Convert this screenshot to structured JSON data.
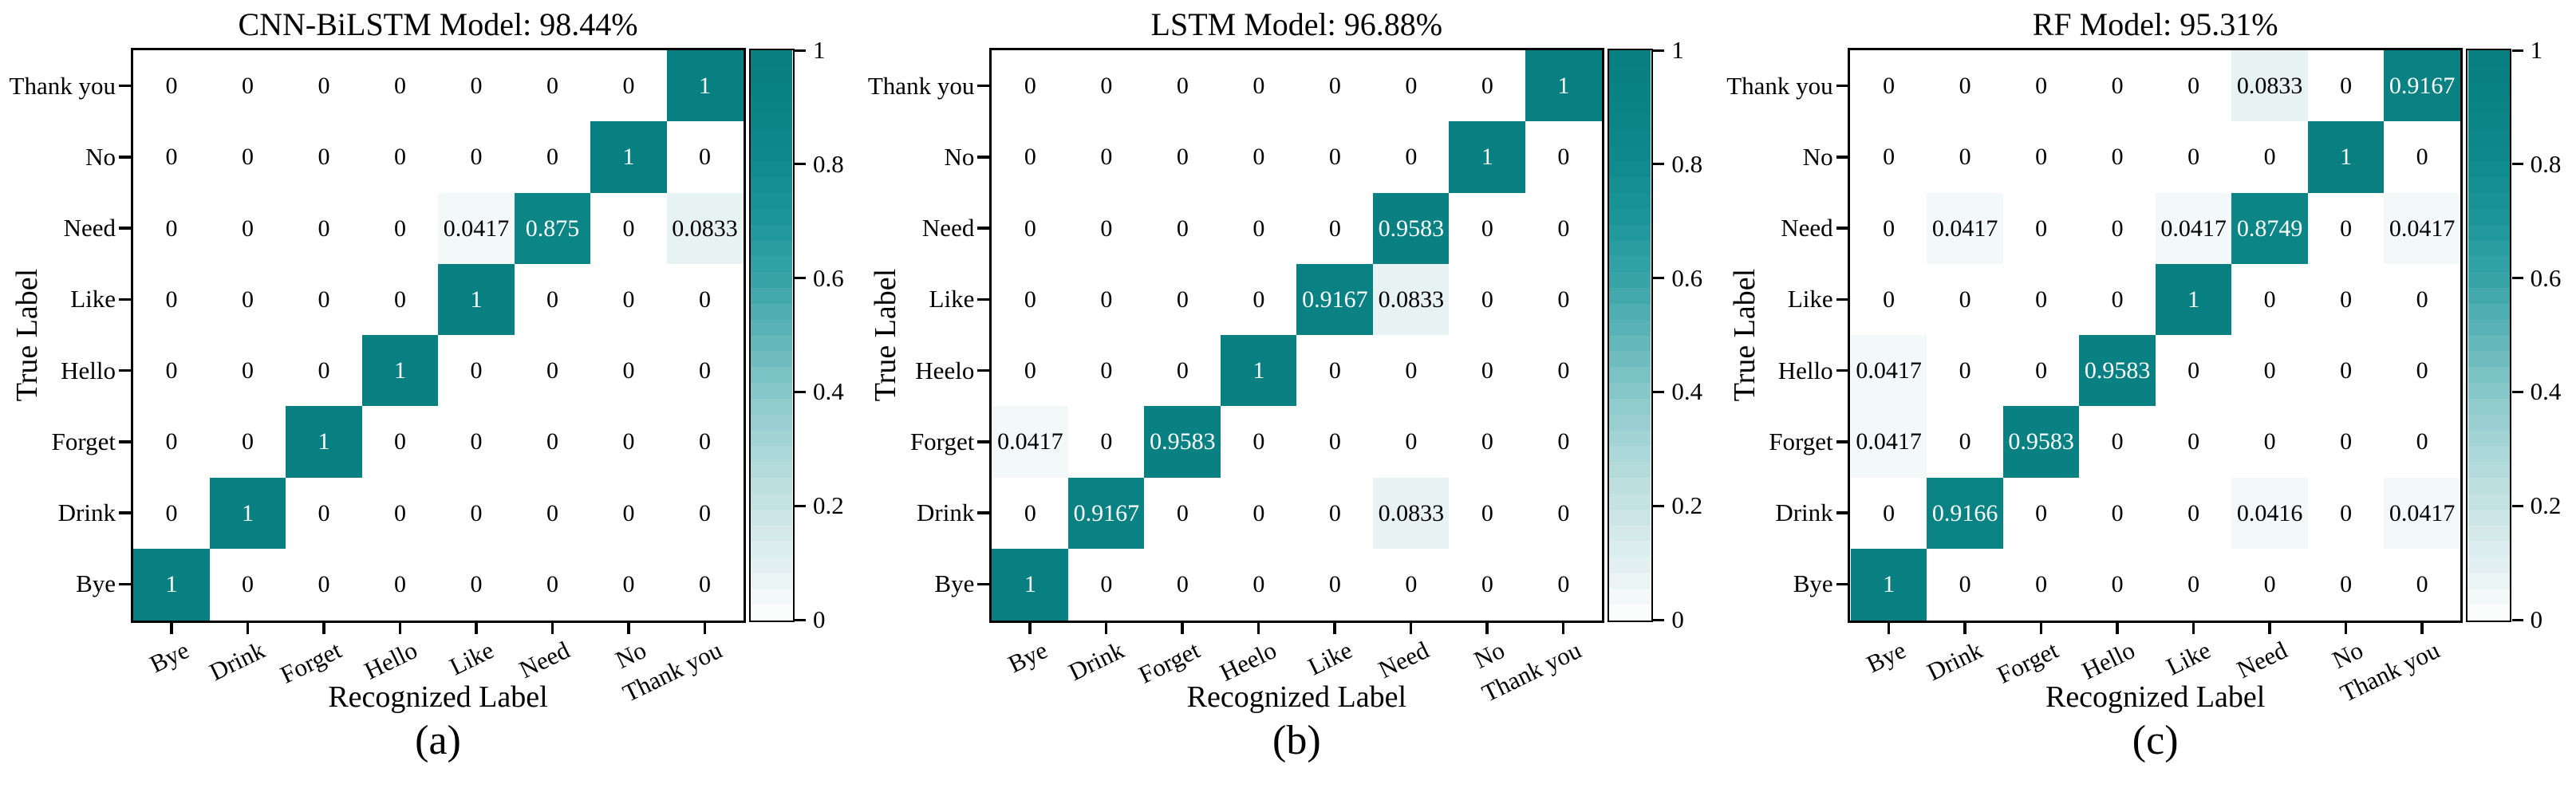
{
  "figure": {
    "x_axis_label": "Recognized Label",
    "y_axis_label": "True Label",
    "accent_color": "#0a8082",
    "background_color": "#ffffff",
    "colorbar_ticks": [
      "1",
      "0.8",
      "0.6",
      "0.4",
      "0.2",
      "0"
    ]
  },
  "chart_data": [
    {
      "type": "heatmap",
      "title": "CNN-BiLSTM Model: 98.44%",
      "caption": "(a)",
      "xlabel": "Recognized Label",
      "ylabel": "True Label",
      "value_range": [
        0,
        1
      ],
      "legend_position": "right-colorbar",
      "x_labels": [
        "Bye",
        "Drink",
        "Forget",
        "Hello",
        "Like",
        "Need",
        "No",
        "Thank you"
      ],
      "rows": [
        {
          "label": "Thank you",
          "cells": [
            "0",
            "0",
            "0",
            "0",
            "0",
            "0",
            "0",
            "1"
          ]
        },
        {
          "label": "No",
          "cells": [
            "0",
            "0",
            "0",
            "0",
            "0",
            "0",
            "1",
            "0"
          ]
        },
        {
          "label": "Need",
          "cells": [
            "0",
            "0",
            "0",
            "0",
            "0.0417",
            "0.875",
            "0",
            "0.0833"
          ]
        },
        {
          "label": "Like",
          "cells": [
            "0",
            "0",
            "0",
            "0",
            "1",
            "0",
            "0",
            "0"
          ]
        },
        {
          "label": "Hello",
          "cells": [
            "0",
            "0",
            "0",
            "1",
            "0",
            "0",
            "0",
            "0"
          ]
        },
        {
          "label": "Forget",
          "cells": [
            "0",
            "0",
            "1",
            "0",
            "0",
            "0",
            "0",
            "0"
          ]
        },
        {
          "label": "Drink",
          "cells": [
            "0",
            "1",
            "0",
            "0",
            "0",
            "0",
            "0",
            "0"
          ]
        },
        {
          "label": "Bye",
          "cells": [
            "1",
            "0",
            "0",
            "0",
            "0",
            "0",
            "0",
            "0"
          ]
        }
      ],
      "colorbar_ticks": [
        "1",
        "0.8",
        "0.6",
        "0.4",
        "0.2",
        "0"
      ]
    },
    {
      "type": "heatmap",
      "title": "LSTM Model: 96.88%",
      "caption": "(b)",
      "xlabel": "Recognized Label",
      "ylabel": "True Label",
      "value_range": [
        0,
        1
      ],
      "legend_position": "right-colorbar",
      "x_labels": [
        "Bye",
        "Drink",
        "Forget",
        "Heelo",
        "Like",
        "Need",
        "No",
        "Thank you"
      ],
      "rows": [
        {
          "label": "Thank you",
          "cells": [
            "0",
            "0",
            "0",
            "0",
            "0",
            "0",
            "0",
            "1"
          ]
        },
        {
          "label": "No",
          "cells": [
            "0",
            "0",
            "0",
            "0",
            "0",
            "0",
            "1",
            "0"
          ]
        },
        {
          "label": "Need",
          "cells": [
            "0",
            "0",
            "0",
            "0",
            "0",
            "0.9583",
            "0",
            "0"
          ]
        },
        {
          "label": "Like",
          "cells": [
            "0",
            "0",
            "0",
            "0",
            "0.9167",
            "0.0833",
            "0",
            "0"
          ]
        },
        {
          "label": "Heelo",
          "cells": [
            "0",
            "0",
            "0",
            "1",
            "0",
            "0",
            "0",
            "0"
          ]
        },
        {
          "label": "Forget",
          "cells": [
            "0.0417",
            "0",
            "0.9583",
            "0",
            "0",
            "0",
            "0",
            "0"
          ]
        },
        {
          "label": "Drink",
          "cells": [
            "0",
            "0.9167",
            "0",
            "0",
            "0",
            "0.0833",
            "0",
            "0"
          ]
        },
        {
          "label": "Bye",
          "cells": [
            "1",
            "0",
            "0",
            "0",
            "0",
            "0",
            "0",
            "0"
          ]
        }
      ],
      "colorbar_ticks": [
        "1",
        "0.8",
        "0.6",
        "0.4",
        "0.2",
        "0"
      ]
    },
    {
      "type": "heatmap",
      "title": "RF Model: 95.31%",
      "caption": "(c)",
      "xlabel": "Recognized Label",
      "ylabel": "True Label",
      "value_range": [
        0,
        1
      ],
      "legend_position": "right-colorbar",
      "x_labels": [
        "Bye",
        "Drink",
        "Forget",
        "Hello",
        "Like",
        "Need",
        "No",
        "Thank you"
      ],
      "rows": [
        {
          "label": "Thank you",
          "cells": [
            "0",
            "0",
            "0",
            "0",
            "0",
            "0.0833",
            "0",
            "0.9167"
          ]
        },
        {
          "label": "No",
          "cells": [
            "0",
            "0",
            "0",
            "0",
            "0",
            "0",
            "1",
            "0"
          ]
        },
        {
          "label": "Need",
          "cells": [
            "0",
            "0.0417",
            "0",
            "0",
            "0.0417",
            "0.8749",
            "0",
            "0.0417"
          ]
        },
        {
          "label": "Like",
          "cells": [
            "0",
            "0",
            "0",
            "0",
            "1",
            "0",
            "0",
            "0"
          ]
        },
        {
          "label": "Hello",
          "cells": [
            "0.0417",
            "0",
            "0",
            "0.9583",
            "0",
            "0",
            "0",
            "0"
          ]
        },
        {
          "label": "Forget",
          "cells": [
            "0.0417",
            "0",
            "0.9583",
            "0",
            "0",
            "0",
            "0",
            "0"
          ]
        },
        {
          "label": "Drink",
          "cells": [
            "0",
            "0.9166",
            "0",
            "0",
            "0",
            "0.0416",
            "0",
            "0.0417"
          ]
        },
        {
          "label": "Bye",
          "cells": [
            "1",
            "0",
            "0",
            "0",
            "0",
            "0",
            "0",
            "0"
          ]
        }
      ],
      "colorbar_ticks": [
        "1",
        "0.8",
        "0.6",
        "0.4",
        "0.2",
        "0"
      ]
    }
  ]
}
